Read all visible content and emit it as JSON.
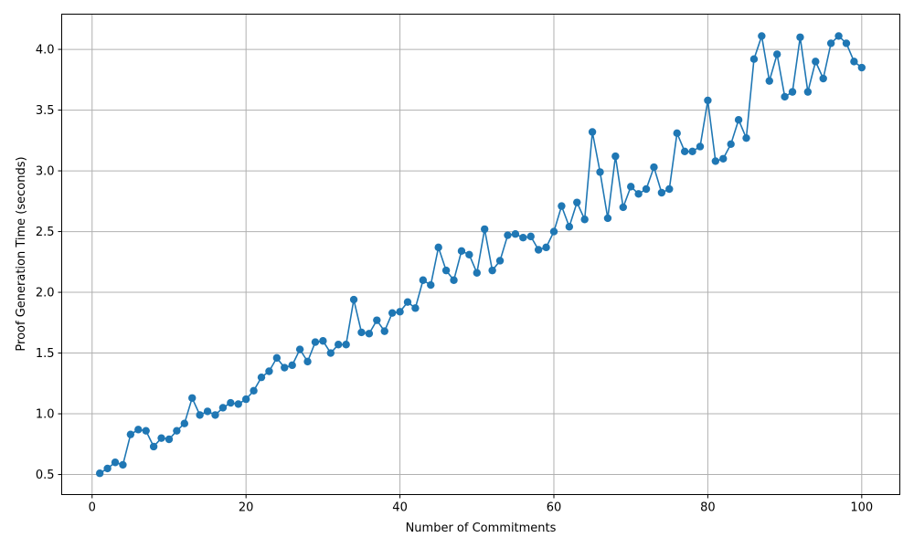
{
  "chart_data": {
    "type": "line",
    "title": "",
    "xlabel": "Number of Commitments",
    "ylabel": "Proof Generation Time (seconds)",
    "xlim": [
      -3.95,
      104.95
    ],
    "ylim": [
      0.335,
      4.29
    ],
    "x_ticks": [
      0,
      20,
      40,
      60,
      80,
      100
    ],
    "y_ticks": [
      0.5,
      1.0,
      1.5,
      2.0,
      2.5,
      3.0,
      3.5,
      4.0
    ],
    "x_tick_labels": [
      "0",
      "20",
      "40",
      "60",
      "80",
      "100"
    ],
    "y_tick_labels": [
      "0.5",
      "1.0",
      "1.5",
      "2.0",
      "2.5",
      "3.0",
      "3.5",
      "4.0"
    ],
    "grid": true,
    "marker": "circle",
    "series": [
      {
        "name": "",
        "color": "#1f77b4",
        "x": [
          1,
          2,
          3,
          4,
          5,
          6,
          7,
          8,
          9,
          10,
          11,
          12,
          13,
          14,
          15,
          16,
          17,
          18,
          19,
          20,
          21,
          22,
          23,
          24,
          25,
          26,
          27,
          28,
          29,
          30,
          31,
          32,
          33,
          34,
          35,
          36,
          37,
          38,
          39,
          40,
          41,
          42,
          43,
          44,
          45,
          46,
          47,
          48,
          49,
          50,
          51,
          52,
          53,
          54,
          55,
          56,
          57,
          58,
          59,
          60,
          61,
          62,
          63,
          64,
          65,
          66,
          67,
          68,
          69,
          70,
          71,
          72,
          73,
          74,
          75,
          76,
          77,
          78,
          79,
          80,
          81,
          82,
          83,
          84,
          85,
          86,
          87,
          88,
          89,
          90,
          91,
          92,
          93,
          94,
          95,
          96,
          97,
          98,
          99,
          100
        ],
        "y": [
          0.51,
          0.55,
          0.6,
          0.58,
          0.83,
          0.87,
          0.86,
          0.73,
          0.8,
          0.79,
          0.86,
          0.92,
          1.13,
          0.99,
          1.02,
          0.99,
          1.05,
          1.09,
          1.08,
          1.12,
          1.19,
          1.3,
          1.35,
          1.46,
          1.38,
          1.4,
          1.53,
          1.43,
          1.59,
          1.6,
          1.5,
          1.57,
          1.57,
          1.94,
          1.67,
          1.66,
          1.77,
          1.68,
          1.83,
          1.84,
          1.92,
          1.87,
          2.1,
          2.06,
          2.37,
          2.18,
          2.1,
          2.34,
          2.31,
          2.16,
          2.52,
          2.18,
          2.26,
          2.47,
          2.48,
          2.45,
          2.46,
          2.35,
          2.37,
          2.5,
          2.71,
          2.54,
          2.74,
          2.6,
          3.32,
          2.99,
          2.61,
          3.12,
          2.7,
          2.87,
          2.81,
          2.85,
          3.03,
          2.82,
          2.85,
          3.31,
          3.16,
          3.16,
          3.2,
          3.58,
          3.08,
          3.1,
          3.22,
          3.42,
          3.27,
          3.92,
          4.11,
          3.74,
          3.96,
          3.61,
          3.65,
          4.1,
          3.65,
          3.9,
          3.76,
          4.05,
          4.11,
          4.05,
          3.9,
          3.85
        ]
      }
    ]
  }
}
